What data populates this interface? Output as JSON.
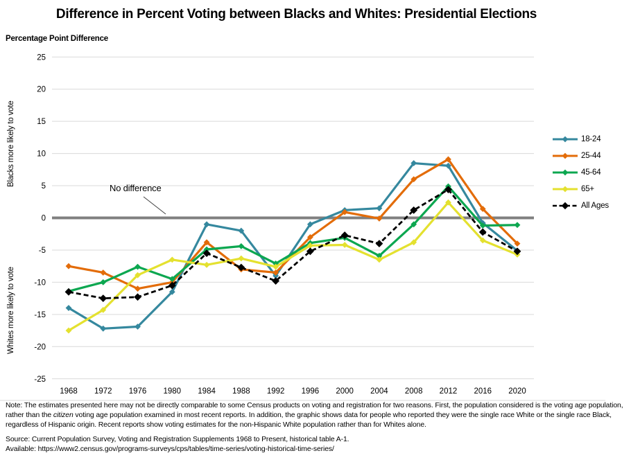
{
  "title": "Difference in Percent Voting between Blacks and Whites: Presidential Elections",
  "y_axis_title": "Percentage Point Difference",
  "left_labels": {
    "blacks": "Blacks more likely to vote",
    "whites": "Whites more likely to vote"
  },
  "annotation": {
    "text": "No difference"
  },
  "chart_data": {
    "type": "line",
    "title": "Difference in Percent Voting between Blacks and Whites: Presidential Elections",
    "ylabel": "Percentage Point Difference",
    "ylim": [
      -25,
      25
    ],
    "y_ticks": [
      25,
      20,
      15,
      10,
      5,
      0,
      -5,
      -10,
      -15,
      -20,
      -25
    ],
    "grid": true,
    "legend_position": "right",
    "zero_line_color": "#808080",
    "gridline_color": "#D9D9D9",
    "categories": [
      1968,
      1972,
      1976,
      1980,
      1984,
      1988,
      1992,
      1996,
      2000,
      2004,
      2008,
      2012,
      2016,
      2020
    ],
    "series": [
      {
        "name": "18-24",
        "color": "#35889E",
        "dash": null,
        "marker": "diamond",
        "values": [
          -14.0,
          -17.2,
          -16.9,
          -11.5,
          -1.0,
          -2.0,
          -9.0,
          -1.0,
          1.2,
          1.5,
          8.5,
          8.1,
          -0.8,
          -5.1
        ]
      },
      {
        "name": "25-44",
        "color": "#E36C09",
        "dash": null,
        "marker": "diamond",
        "values": [
          -7.5,
          -8.5,
          -11.0,
          -10.0,
          -3.8,
          -8.0,
          -8.5,
          -3.0,
          0.9,
          -0.1,
          6.0,
          9.1,
          1.4,
          -4.0
        ]
      },
      {
        "name": "45-64",
        "color": "#0CA750",
        "dash": null,
        "marker": "diamond",
        "values": [
          -11.4,
          -10.0,
          -7.6,
          -9.5,
          -4.9,
          -4.4,
          -7.1,
          -3.9,
          -3.1,
          -5.9,
          -1.0,
          4.9,
          -1.2,
          -1.1
        ]
      },
      {
        "name": "65+",
        "color": "#E4E12F",
        "dash": null,
        "marker": "diamond",
        "values": [
          -17.5,
          -14.3,
          -8.9,
          -6.5,
          -7.3,
          -6.3,
          -7.6,
          -4.3,
          -4.2,
          -6.5,
          -3.8,
          2.4,
          -3.5,
          -5.7
        ]
      },
      {
        "name": "All Ages",
        "color": "#000000",
        "dash": "7 4",
        "marker": "diamond-large",
        "values": [
          -11.5,
          -12.5,
          -12.3,
          -10.5,
          -5.5,
          -7.7,
          -9.8,
          -5.2,
          -2.7,
          -4.0,
          1.2,
          4.4,
          -2.2,
          -5.2
        ]
      }
    ]
  },
  "note": {
    "prefix": "Note: The estimates presented here may not be directly comparable to some Census products on voting and registration for two reasons. First, the population considered is the voting age population, rather than the ",
    "italic": "citizen",
    "suffix": " voting age population examined in most recent reports. In addition, the graphic shows data for people who reported they were the single race White or the single race Black, regardless of Hispanic origin. Recent reports show voting estimates for the non-Hispanic White population rather than for Whites alone."
  },
  "source": "Source: Current Population Survey, Voting and Registration Supplements 1968 to Present, historical table A-1.",
  "available": "Available: https://www2.census.gov/programs-surveys/cps/tables/time-series/voting-historical-time-series/"
}
